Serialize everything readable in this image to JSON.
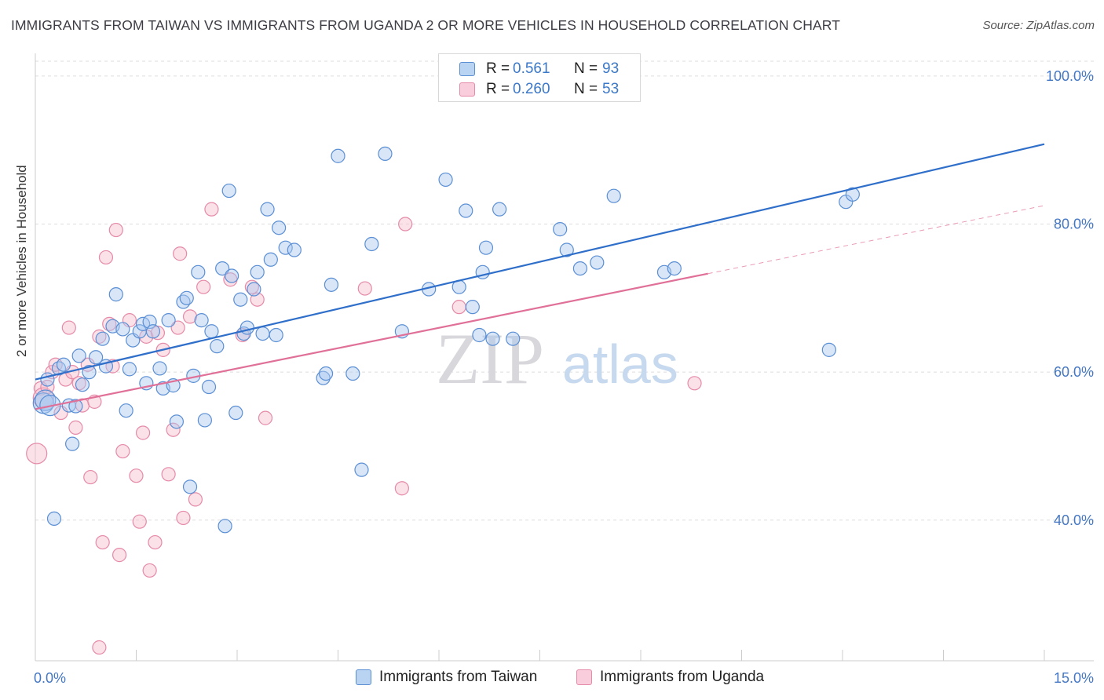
{
  "title": "IMMIGRANTS FROM TAIWAN VS IMMIGRANTS FROM UGANDA 2 OR MORE VEHICLES IN HOUSEHOLD CORRELATION CHART",
  "source": "Source: ZipAtlas.com",
  "watermark": {
    "zip": "ZIP",
    "atlas": "atlas"
  },
  "colors": {
    "taiwan_fill": "#a8c8f0",
    "taiwan_stroke": "#5b8fd4",
    "taiwan_line": "#2f6fca",
    "uganda_fill": "#f6bccd",
    "uganda_stroke": "#e58aa8",
    "uganda_line": "#e07098",
    "tick_text": "#4477c4",
    "grid": "#dddddd"
  },
  "legend": {
    "rows": [
      {
        "r_label": "R =",
        "r_value": "0.561",
        "n_label": "N =",
        "n_value": "93",
        "series": "taiwan"
      },
      {
        "r_label": "R =",
        "r_value": "0.260",
        "n_label": "N =",
        "n_value": "53",
        "series": "uganda"
      }
    ]
  },
  "bottom_legend": [
    "Immigrants from Taiwan",
    "Immigrants from Uganda"
  ],
  "chart_data": {
    "type": "scatter",
    "xlabel": "",
    "ylabel": "2 or more Vehicles in Household",
    "xlim": [
      0,
      15
    ],
    "ylim": [
      21,
      102
    ],
    "x_tick_labels": [
      {
        "value": 0,
        "label": "0.0%"
      },
      {
        "value": 15,
        "label": "15.0%"
      }
    ],
    "y_tick_labels": [
      {
        "value": 100,
        "label": "100.0%"
      },
      {
        "value": 80,
        "label": "80.0%"
      },
      {
        "value": 60,
        "label": "60.0%"
      },
      {
        "value": 40,
        "label": "40.0%"
      }
    ],
    "grid": "horizontal dashed",
    "legend_placement": "top-center",
    "series": [
      {
        "name": "Immigrants from Taiwan",
        "r": 0.561,
        "n": 93,
        "trend": {
          "x": [
            0,
            15
          ],
          "y": [
            59.0,
            90.8
          ]
        },
        "points": [
          [
            0.12,
            55.8
          ],
          [
            0.15,
            56.2
          ],
          [
            0.18,
            59.0
          ],
          [
            0.22,
            55.5
          ],
          [
            0.28,
            40.2
          ],
          [
            0.35,
            60.5
          ],
          [
            0.42,
            61.0
          ],
          [
            0.5,
            55.5
          ],
          [
            0.55,
            50.3
          ],
          [
            0.6,
            55.4
          ],
          [
            0.65,
            62.2
          ],
          [
            0.7,
            58.3
          ],
          [
            0.8,
            60.0
          ],
          [
            0.9,
            62.0
          ],
          [
            1.0,
            64.5
          ],
          [
            1.05,
            60.8
          ],
          [
            1.15,
            66.2
          ],
          [
            1.2,
            70.5
          ],
          [
            1.3,
            65.8
          ],
          [
            1.35,
            54.8
          ],
          [
            1.4,
            60.4
          ],
          [
            1.45,
            64.3
          ],
          [
            1.55,
            65.5
          ],
          [
            1.6,
            66.5
          ],
          [
            1.65,
            58.5
          ],
          [
            1.7,
            66.8
          ],
          [
            1.75,
            65.5
          ],
          [
            1.85,
            60.5
          ],
          [
            1.9,
            57.8
          ],
          [
            1.98,
            67.0
          ],
          [
            2.05,
            58.2
          ],
          [
            2.1,
            53.3
          ],
          [
            2.2,
            69.5
          ],
          [
            2.25,
            70.0
          ],
          [
            2.3,
            44.5
          ],
          [
            2.35,
            59.5
          ],
          [
            2.42,
            73.5
          ],
          [
            2.47,
            67.0
          ],
          [
            2.52,
            53.5
          ],
          [
            2.58,
            58.0
          ],
          [
            2.62,
            65.5
          ],
          [
            2.7,
            63.5
          ],
          [
            2.78,
            74.0
          ],
          [
            2.82,
            39.2
          ],
          [
            2.88,
            84.5
          ],
          [
            2.92,
            73.0
          ],
          [
            2.98,
            54.5
          ],
          [
            3.05,
            69.8
          ],
          [
            3.1,
            65.2
          ],
          [
            3.15,
            66.0
          ],
          [
            3.25,
            71.2
          ],
          [
            3.3,
            73.5
          ],
          [
            3.38,
            65.2
          ],
          [
            3.45,
            82.0
          ],
          [
            3.5,
            75.2
          ],
          [
            3.58,
            65.0
          ],
          [
            3.62,
            79.5
          ],
          [
            3.72,
            76.8
          ],
          [
            3.85,
            76.5
          ],
          [
            4.28,
            59.2
          ],
          [
            4.32,
            59.8
          ],
          [
            4.4,
            71.8
          ],
          [
            4.5,
            89.2
          ],
          [
            4.72,
            59.8
          ],
          [
            4.85,
            46.8
          ],
          [
            5.0,
            77.3
          ],
          [
            5.2,
            89.5
          ],
          [
            5.45,
            65.5
          ],
          [
            5.85,
            71.2
          ],
          [
            6.1,
            86.0
          ],
          [
            6.3,
            71.5
          ],
          [
            6.4,
            81.8
          ],
          [
            6.5,
            68.8
          ],
          [
            6.6,
            65.0
          ],
          [
            6.65,
            73.5
          ],
          [
            6.7,
            76.8
          ],
          [
            6.8,
            64.5
          ],
          [
            6.9,
            82.0
          ],
          [
            7.1,
            64.5
          ],
          [
            7.5,
            100.0
          ],
          [
            7.8,
            79.3
          ],
          [
            7.9,
            76.5
          ],
          [
            8.1,
            74.0
          ],
          [
            8.35,
            74.8
          ],
          [
            8.6,
            83.8
          ],
          [
            9.35,
            73.5
          ],
          [
            9.5,
            74.0
          ],
          [
            11.8,
            63.0
          ],
          [
            12.05,
            83.0
          ],
          [
            12.15,
            84.0
          ]
        ]
      },
      {
        "name": "Immigrants from Uganda",
        "r": 0.26,
        "n": 53,
        "trend": {
          "x": [
            0,
            10.0
          ],
          "y": [
            55.0,
            73.3
          ]
        },
        "trend_dashed": {
          "x": [
            10.0,
            15
          ],
          "y": [
            73.3,
            82.5
          ]
        },
        "points": [
          [
            0.02,
            49.0
          ],
          [
            0.08,
            57.8
          ],
          [
            0.12,
            56.5
          ],
          [
            0.18,
            58.0
          ],
          [
            0.25,
            60.0
          ],
          [
            0.3,
            61.0
          ],
          [
            0.38,
            54.5
          ],
          [
            0.45,
            59.0
          ],
          [
            0.5,
            66.0
          ],
          [
            0.55,
            60.0
          ],
          [
            0.6,
            52.5
          ],
          [
            0.65,
            58.5
          ],
          [
            0.7,
            55.5
          ],
          [
            0.78,
            61.0
          ],
          [
            0.82,
            45.8
          ],
          [
            0.88,
            56.0
          ],
          [
            0.95,
            64.8
          ],
          [
            1.0,
            37.0
          ],
          [
            1.05,
            75.5
          ],
          [
            1.1,
            66.5
          ],
          [
            1.15,
            60.8
          ],
          [
            1.2,
            79.2
          ],
          [
            1.25,
            35.3
          ],
          [
            1.3,
            49.3
          ],
          [
            1.4,
            67.0
          ],
          [
            1.5,
            46.0
          ],
          [
            1.55,
            39.8
          ],
          [
            1.6,
            51.8
          ],
          [
            1.65,
            64.8
          ],
          [
            1.7,
            33.2
          ],
          [
            1.78,
            37.0
          ],
          [
            1.82,
            65.3
          ],
          [
            1.9,
            63.0
          ],
          [
            1.98,
            46.2
          ],
          [
            2.05,
            52.2
          ],
          [
            2.12,
            66.0
          ],
          [
            2.15,
            76.0
          ],
          [
            2.2,
            40.3
          ],
          [
            2.3,
            67.5
          ],
          [
            2.38,
            42.8
          ],
          [
            2.5,
            71.5
          ],
          [
            2.62,
            82.0
          ],
          [
            2.9,
            72.5
          ],
          [
            3.08,
            65.0
          ],
          [
            3.22,
            71.5
          ],
          [
            3.3,
            69.8
          ],
          [
            3.42,
            53.8
          ],
          [
            4.9,
            71.3
          ],
          [
            5.45,
            44.3
          ],
          [
            5.5,
            80.0
          ],
          [
            6.3,
            68.8
          ],
          [
            9.8,
            58.5
          ],
          [
            0.95,
            22.8
          ]
        ]
      }
    ]
  }
}
